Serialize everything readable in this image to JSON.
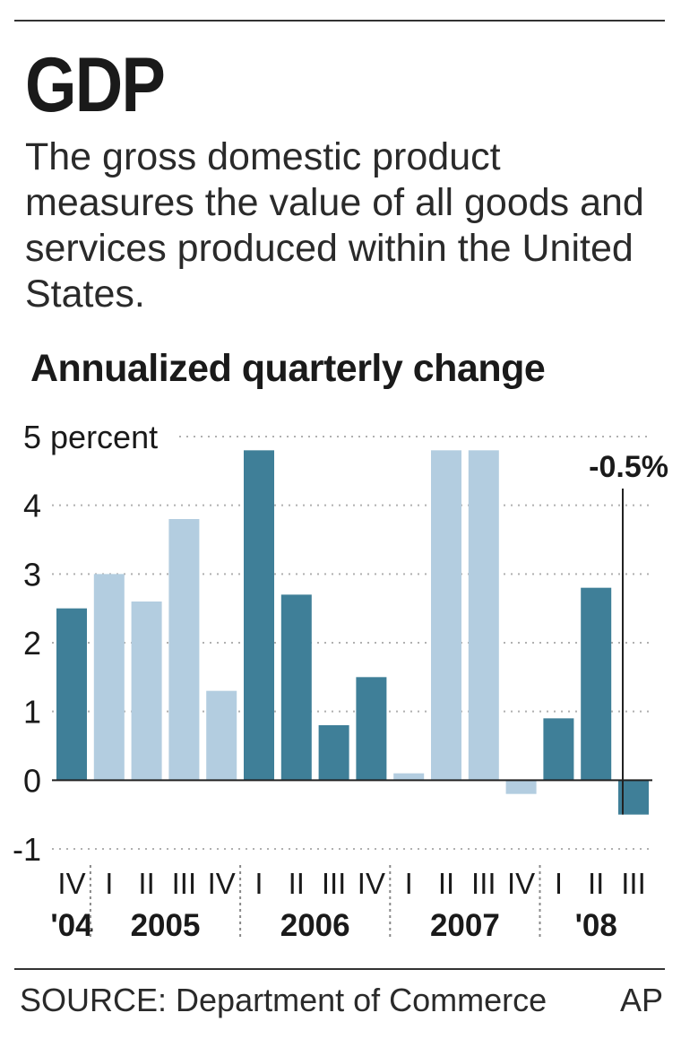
{
  "title": "GDP",
  "subtitle": "The gross domestic product measures the value of all goods and services produced within the United States.",
  "chart_heading": "Annualized quarterly change",
  "source": "SOURCE: Department of Commerce",
  "credit": "AP",
  "colors": {
    "dark": "#3f7f98",
    "light": "#b3cde0",
    "text": "#1a1a1a",
    "grid": "#b0b0b0"
  },
  "chart_data": {
    "type": "bar",
    "title": "Annualized quarterly change",
    "ylabel": "percent",
    "ylim": [
      -1,
      5
    ],
    "yticks": [
      {
        "value": 5,
        "label": "5 percent"
      },
      {
        "value": 4,
        "label": "4"
      },
      {
        "value": 3,
        "label": "3"
      },
      {
        "value": 2,
        "label": "2"
      },
      {
        "value": 1,
        "label": "1"
      },
      {
        "value": 0,
        "label": "0"
      },
      {
        "value": -1,
        "label": "-1"
      }
    ],
    "grid": true,
    "categories": [
      "IV",
      "I",
      "II",
      "III",
      "IV",
      "I",
      "II",
      "III",
      "IV",
      "I",
      "II",
      "III",
      "IV",
      "I",
      "II",
      "III"
    ],
    "values": [
      2.5,
      3.0,
      2.6,
      3.8,
      1.3,
      4.8,
      2.7,
      0.8,
      1.5,
      0.1,
      4.8,
      4.8,
      -0.2,
      0.9,
      2.8,
      -0.5
    ],
    "shades": [
      "dark",
      "light",
      "light",
      "light",
      "light",
      "dark",
      "dark",
      "dark",
      "dark",
      "light",
      "light",
      "light",
      "light",
      "dark",
      "dark",
      "dark"
    ],
    "years": [
      {
        "label": "'04",
        "first": 0,
        "last": 0
      },
      {
        "label": "2005",
        "first": 1,
        "last": 4
      },
      {
        "label": "2006",
        "first": 5,
        "last": 8
      },
      {
        "label": "2007",
        "first": 9,
        "last": 12
      },
      {
        "label": "'08",
        "first": 13,
        "last": 15
      }
    ],
    "annotation": {
      "index": 15,
      "text": "-0.5%"
    }
  }
}
